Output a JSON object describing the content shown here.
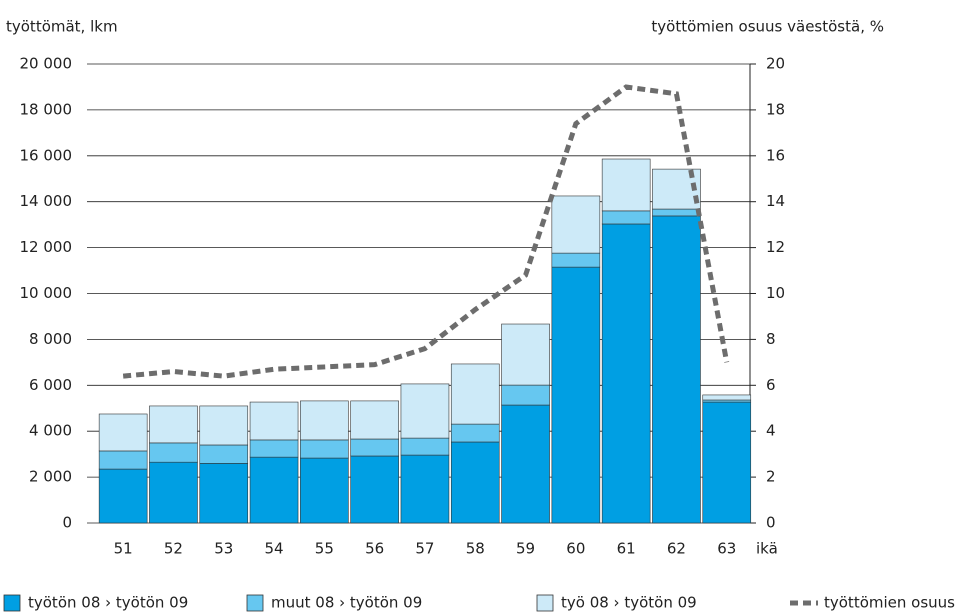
{
  "chart_data": {
    "type": "bar",
    "y_label": "työttömät, lkm",
    "y2_label": "työttömien osuus väestöstä, %",
    "x_label": "ikä",
    "stacked": true,
    "categories": [
      "51",
      "52",
      "53",
      "54",
      "55",
      "56",
      "57",
      "58",
      "59",
      "60",
      "61",
      "62",
      "63"
    ],
    "series": [
      {
        "name": "työtön 08 › työtön 09",
        "color": "#009fe3",
        "values": [
          2350,
          2650,
          2600,
          2870,
          2830,
          2920,
          2960,
          3530,
          5140,
          11150,
          13030,
          13380,
          5270
        ]
      },
      {
        "name": "muut 08 › työtön 09",
        "color": "#66c7f0",
        "values": [
          790,
          840,
          800,
          750,
          790,
          740,
          740,
          780,
          870,
          610,
          570,
          300,
          90
        ]
      },
      {
        "name": "työ 08 › työtön 09",
        "color": "#cdeaf8",
        "values": [
          1610,
          1610,
          1700,
          1650,
          1700,
          1660,
          2360,
          2620,
          2660,
          2490,
          2260,
          1740,
          220
        ]
      },
      {
        "name": "työttömien osuus",
        "color": "#6d6d6d",
        "type": "line",
        "axis": "y2",
        "values": [
          6.4,
          6.6,
          6.4,
          6.7,
          6.8,
          6.9,
          7.6,
          9.3,
          10.8,
          17.4,
          19.0,
          18.7,
          7.0
        ]
      }
    ],
    "ylim": [
      0,
      20000
    ],
    "yticks": [
      {
        "value": 0,
        "label": "0"
      },
      {
        "value": 2000,
        "label": "2 000"
      },
      {
        "value": 4000,
        "label": "4 000"
      },
      {
        "value": 6000,
        "label": "6 000"
      },
      {
        "value": 8000,
        "label": "8 000"
      },
      {
        "value": 10000,
        "label": "10 000"
      },
      {
        "value": 12000,
        "label": "12 000"
      },
      {
        "value": 14000,
        "label": "14 000"
      },
      {
        "value": 16000,
        "label": "16 000"
      },
      {
        "value": 18000,
        "label": "18 000"
      },
      {
        "value": 20000,
        "label": "20 000"
      }
    ],
    "y2lim": [
      0,
      20
    ],
    "y2ticks": [
      0,
      2,
      4,
      6,
      8,
      10,
      12,
      14,
      16,
      18,
      20
    ],
    "grid": true,
    "legend": "bottom"
  }
}
